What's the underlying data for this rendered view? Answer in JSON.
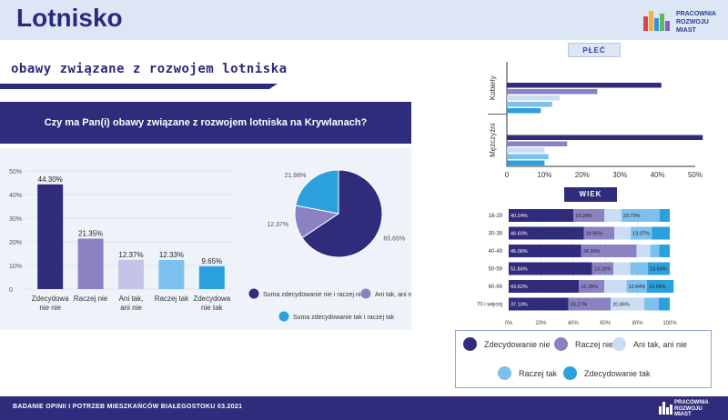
{
  "header": {
    "title": "Lotnisko",
    "logo_text": "PRACOWNIA\nROZWOJU\nMIAST",
    "colors": {
      "bar": "#dce6f4",
      "title": "#2a2a7a"
    }
  },
  "section_title": "obawy związane z rozwojem lotniska",
  "question": "Czy ma Pan(i) obawy związane z rozwojem lotniska na Krywlanach?",
  "labels": {
    "gender": "PŁEĆ",
    "age": "WIEK"
  },
  "legend": [
    {
      "label": "Zdecydowanie nie",
      "color": "#2f2c7c"
    },
    {
      "label": "Raczej nie",
      "color": "#8a82c3"
    },
    {
      "label": "Ani tak, ani nie",
      "color": "#c9def4"
    },
    {
      "label": "Raczej tak",
      "color": "#7cc0ee"
    },
    {
      "label": "Zdecydowanie tak",
      "color": "#2aa0de"
    }
  ],
  "footer": {
    "text": "BADANIE OPINII I POTRZEB MIESZKAŃCÓW BIAŁEGOSTOKU 03.2021",
    "logo_text": "PRACOWNIA\nROZWOJU\nMIAST"
  },
  "chart_data": [
    {
      "type": "bar",
      "categories": [
        "Zdecydowa nie nie",
        "Raczej nie",
        "Ani tak, ani nie",
        "Raczej tak",
        "Zdecydowa nie tak"
      ],
      "values": [
        44.3,
        21.35,
        12.37,
        12.33,
        9.65
      ],
      "value_labels": [
        "44.30%",
        "21.35%",
        "12.37%",
        "12.33%",
        "9.65%"
      ],
      "colors": [
        "#2f2c7c",
        "#8a82c3",
        "#c5c3e6",
        "#7cc0ee",
        "#2aa0de"
      ],
      "ylim": [
        0,
        50
      ],
      "yticks": [
        "0",
        "10%",
        "20%",
        "30%",
        "40%",
        "50%"
      ],
      "grid": true
    },
    {
      "type": "pie",
      "labels": [
        "Suma zdecydowanie nie i raczej nie",
        "Ani tak, ani nie",
        "Suma zdecydowanie tak i raczej tak"
      ],
      "values": [
        65.65,
        12.37,
        21.98
      ],
      "value_labels": [
        "65.65%",
        "12.37%",
        "21.98%"
      ],
      "colors": [
        "#2f2c7c",
        "#8a82c3",
        "#2aa0de"
      ]
    },
    {
      "type": "bar",
      "orientation": "horizontal",
      "categories": [
        "Kobiety",
        "Mężczyźni"
      ],
      "series": [
        {
          "values": [
            41,
            52
          ]
        },
        {
          "values": [
            24,
            16
          ]
        },
        {
          "values": [
            14,
            10
          ]
        },
        {
          "values": [
            12,
            11
          ]
        },
        {
          "values": [
            9,
            10
          ]
        }
      ],
      "xlim": [
        0,
        50
      ],
      "xticks": [
        "0",
        "10%",
        "20%",
        "30%",
        "40%",
        "50%"
      ]
    },
    {
      "type": "bar",
      "orientation": "horizontal",
      "stacked": true,
      "categories": [
        "18-29",
        "30-39",
        "40-49",
        "50-59",
        "60-69",
        "70 i więcej"
      ],
      "series": [
        {
          "values": [
            40.24,
            46.6,
            45.06,
            51.84,
            43.62,
            37.1
          ],
          "labels": [
            "40.24%",
            "46.60%",
            "45.06%",
            "51.84%",
            "43.62%",
            "37.10%"
          ]
        },
        {
          "values": [
            19.24,
            18.96,
            34.3,
            13.16,
            15.78,
            26.27
          ],
          "labels": [
            "19.24%",
            "18.96%",
            "34.30%",
            "13.16%",
            "15.78%",
            "26.27%"
          ]
        },
        {
          "values": [
            10.5,
            10.2,
            8.5,
            10.5,
            13.8,
            20.86
          ],
          "labels": [
            "",
            "",
            "",
            "",
            "",
            "20.86%"
          ]
        },
        {
          "values": [
            23.79,
            13.07,
            5.5,
            10.9,
            12.64,
            9.0
          ],
          "labels": [
            "23.79%",
            "13.07%",
            "",
            "",
            "12.64%",
            ""
          ]
        },
        {
          "values": [
            6.23,
            11.17,
            6.64,
            13.59,
            16.59,
            6.77
          ],
          "labels": [
            "",
            "",
            "",
            "13.59%",
            "16.59%",
            ""
          ]
        }
      ],
      "xlim": [
        0,
        100
      ],
      "xticks": [
        "0%",
        "20%",
        "40%",
        "60%",
        "80%",
        "100%"
      ]
    }
  ]
}
